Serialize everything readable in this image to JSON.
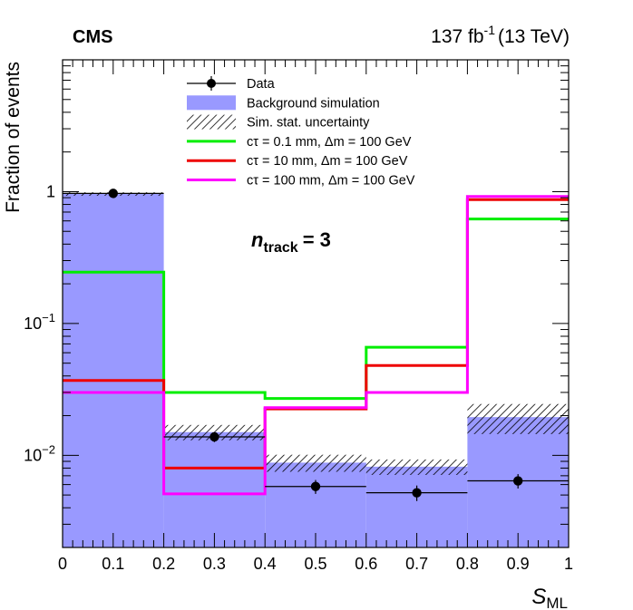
{
  "chart_data": {
    "type": "step-histogram",
    "experiment_label": "CMS",
    "lumi_label": "137 fb",
    "lumi_exp": "-1",
    "energy_label": "(13 TeV)",
    "category_label": "n",
    "category_sub": "track",
    "category_value": "= 3",
    "ylabel": "Fraction of events",
    "xlabel_main": "S",
    "xlabel_sub": "ML",
    "xlim": [
      0,
      1
    ],
    "ylim": [
      0.002,
      10
    ],
    "yscale": "log",
    "x_ticks": [
      "0",
      "0.1",
      "0.2",
      "0.3",
      "0.4",
      "0.5",
      "0.6",
      "0.7",
      "0.8",
      "0.9",
      "1"
    ],
    "y_ticks": [
      {
        "value": 0.01,
        "base": "10",
        "exp": "−2"
      },
      {
        "value": 0.1,
        "base": "10",
        "exp": "−1"
      },
      {
        "value": 1,
        "base": "1",
        "exp": ""
      }
    ],
    "bin_edges": [
      0,
      0.2,
      0.4,
      0.6,
      0.8,
      1.0
    ],
    "background": {
      "name": "Background simulation",
      "color": "#9999ff",
      "values": [
        0.96,
        0.015,
        0.0088,
        0.0082,
        0.0195
      ],
      "uncertainty": [
        0.03,
        0.002,
        0.0013,
        0.0011,
        0.005
      ],
      "uncertainty_name": "Sim. stat. uncertainty"
    },
    "data": {
      "name": "Data",
      "x": [
        0.1,
        0.3,
        0.5,
        0.7,
        0.9
      ],
      "y": [
        0.97,
        0.0138,
        0.0058,
        0.0052,
        0.0064
      ],
      "yerr": [
        0.04,
        0.0012,
        0.0007,
        0.0007,
        0.0008
      ]
    },
    "series": [
      {
        "name": "cτ = 0.1 mm, Δm = 100 GeV",
        "color": "#00ee00",
        "values": [
          0.245,
          0.03,
          0.027,
          0.066,
          0.62
        ]
      },
      {
        "name": "cτ = 10 mm, Δm = 100 GeV",
        "color": "#ee0000",
        "values": [
          0.037,
          0.008,
          0.0225,
          0.048,
          0.87
        ]
      },
      {
        "name": "cτ = 100 mm, Δm = 100 GeV",
        "color": "#ff00ff",
        "values": [
          0.03,
          0.0051,
          0.023,
          0.03,
          0.92
        ]
      }
    ]
  }
}
